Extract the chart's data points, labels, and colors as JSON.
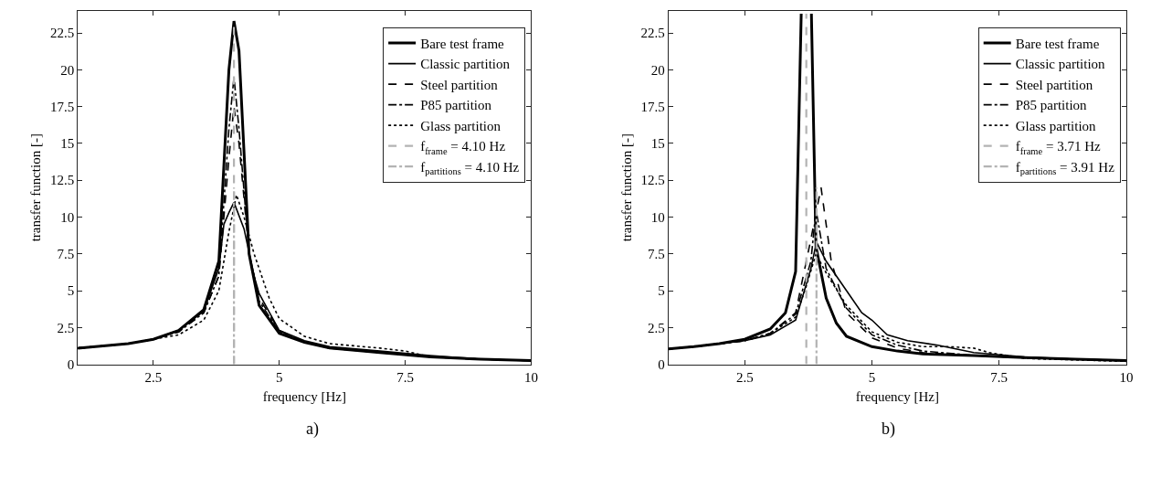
{
  "chart_data": [
    {
      "type": "line",
      "xlabel": "frequency [Hz]",
      "ylabel": "transfer function [-]",
      "xlim": [
        1,
        10
      ],
      "xticks": [
        2.5,
        5,
        7.5,
        10
      ],
      "ylim": [
        0,
        24
      ],
      "yticks": [
        0,
        2.5,
        5,
        7.5,
        10,
        12.5,
        15,
        17.5,
        20,
        22.5
      ],
      "legend": "top right",
      "marker": "none",
      "annotations": [
        "a)"
      ],
      "series": [
        {
          "name": "Bare test frame",
          "color": "#000000",
          "line_style": "solid",
          "x": [
            1,
            1.5,
            2,
            2.5,
            3,
            3.5,
            3.8,
            4.0,
            4.1,
            4.2,
            4.4,
            4.6,
            5,
            5.5,
            6,
            7,
            8,
            9,
            10
          ],
          "values": [
            1.1,
            1.25,
            1.4,
            1.7,
            2.3,
            3.7,
            7,
            20,
            23.3,
            21.3,
            7.5,
            4,
            2.1,
            1.5,
            1.1,
            0.8,
            0.5,
            0.35,
            0.25
          ]
        },
        {
          "name": "Classic partition",
          "color": "#000000",
          "line_style": "solid",
          "x": [
            1,
            1.5,
            2,
            2.5,
            3,
            3.5,
            3.8,
            3.9,
            4.0,
            4.1,
            4.3,
            4.5,
            4.6,
            5,
            5.5,
            6,
            7,
            8,
            9,
            10
          ],
          "values": [
            1.1,
            1.25,
            1.4,
            1.7,
            2.3,
            3.6,
            6.5,
            9.5,
            10.3,
            11,
            9.2,
            6,
            4.8,
            2.3,
            1.6,
            1.2,
            0.9,
            0.6,
            0.35,
            0.25
          ]
        },
        {
          "name": "Steel partition",
          "color": "#000000",
          "line_style": "dashed",
          "x": [
            1,
            1.5,
            2,
            2.5,
            3,
            3.5,
            3.8,
            4.0,
            4.1,
            4.2,
            4.4,
            4.6,
            5,
            5.5,
            6,
            7,
            8,
            9,
            10
          ],
          "values": [
            1.1,
            1.25,
            1.4,
            1.7,
            2.2,
            3.5,
            6,
            14,
            17.5,
            15,
            7.5,
            4.5,
            2.3,
            1.5,
            1.1,
            0.8,
            0.5,
            0.35,
            0.25
          ]
        },
        {
          "name": "P85 partition",
          "color": "#000000",
          "line_style": "dashdot",
          "x": [
            1,
            1.5,
            2,
            2.5,
            3,
            3.5,
            3.8,
            4.0,
            4.1,
            4.2,
            4.4,
            4.6,
            5,
            5.5,
            6,
            7,
            8,
            9,
            10
          ],
          "values": [
            1.1,
            1.25,
            1.4,
            1.7,
            2.2,
            3.5,
            6,
            16,
            19.5,
            16,
            7.5,
            4.3,
            2.2,
            1.5,
            1.1,
            0.8,
            0.5,
            0.35,
            0.25
          ]
        },
        {
          "name": "Glass partition",
          "color": "#000000",
          "line_style": "dotted",
          "x": [
            1,
            1.5,
            2,
            2.5,
            3,
            3.5,
            3.8,
            4.0,
            4.15,
            4.3,
            4.5,
            4.8,
            5,
            5.5,
            6,
            7,
            7.5,
            8,
            9,
            10
          ],
          "values": [
            1.1,
            1.25,
            1.4,
            1.7,
            2.0,
            3.0,
            5,
            9,
            11.5,
            10,
            7.5,
            4.5,
            3.1,
            1.9,
            1.4,
            1.1,
            0.9,
            0.5,
            0.35,
            0.25
          ]
        },
        {
          "name": "f$_{frame}$ = 4.10 Hz",
          "color": "#b3b3b3",
          "line_style": "dashed",
          "x": [
            4.1,
            4.1
          ],
          "values": [
            0,
            23
          ]
        },
        {
          "name": "f$_{partitions}$ = 4.10 Hz",
          "color": "#b3b3b3",
          "line_style": "dashdot",
          "x": [
            4.1,
            4.1
          ],
          "values": [
            0,
            12
          ]
        }
      ]
    },
    {
      "type": "line",
      "xlabel": "frequency [Hz]",
      "ylabel": "transfer function [-]",
      "xlim": [
        1,
        10
      ],
      "xticks": [
        2.5,
        5,
        7.5,
        10
      ],
      "ylim": [
        0,
        24
      ],
      "yticks": [
        0,
        2.5,
        5,
        7.5,
        10,
        12.5,
        15,
        17.5,
        20,
        22.5
      ],
      "legend": "top right",
      "marker": "none",
      "annotations": [
        "b)"
      ],
      "series": [
        {
          "name": "Bare test frame",
          "color": "#000000",
          "line_style": "solid",
          "x": [
            1,
            1.5,
            2,
            2.5,
            3,
            3.3,
            3.5,
            3.61,
            3.71,
            3.81,
            3.9,
            4.1,
            4.3,
            4.5,
            5,
            5.5,
            6,
            7,
            8,
            9,
            10
          ],
          "values": [
            1.05,
            1.2,
            1.4,
            1.7,
            2.4,
            3.5,
            6.3,
            23.8,
            null,
            23.8,
            8,
            4.5,
            2.8,
            1.9,
            1.2,
            0.9,
            0.7,
            0.6,
            0.45,
            0.35,
            0.25
          ]
        },
        {
          "name": "Classic partition",
          "color": "#000000",
          "line_style": "solid",
          "x": [
            1,
            1.5,
            2,
            2.5,
            3,
            3.5,
            3.8,
            3.91,
            4.1,
            4.5,
            4.8,
            5,
            5.3,
            5.7,
            6.3,
            7,
            8,
            9,
            10
          ],
          "values": [
            1.05,
            1.2,
            1.4,
            1.6,
            2.0,
            3.0,
            6.5,
            8.3,
            7,
            5,
            3.5,
            3.0,
            2.0,
            1.6,
            1.3,
            0.8,
            0.5,
            0.35,
            0.25
          ]
        },
        {
          "name": "Steel partition",
          "color": "#000000",
          "line_style": "dashed",
          "x": [
            1,
            1.5,
            2,
            2.5,
            3,
            3.5,
            3.8,
            4.0,
            4.2,
            4.5,
            5,
            5.5,
            6,
            7,
            8,
            9,
            10
          ],
          "values": [
            1.05,
            1.2,
            1.4,
            1.6,
            2.1,
            3.5,
            8.5,
            12,
            7,
            3.5,
            1.8,
            1.1,
            0.8,
            0.6,
            0.45,
            0.35,
            0.25
          ]
        },
        {
          "name": "P85 partition",
          "color": "#000000",
          "line_style": "dashdot",
          "x": [
            1,
            1.5,
            2,
            2.5,
            3,
            3.5,
            3.8,
            3.9,
            4.1,
            4.5,
            5,
            5.5,
            6,
            7,
            8,
            9,
            10
          ],
          "values": [
            1.05,
            1.2,
            1.4,
            1.6,
            2.1,
            3.4,
            7,
            10.5,
            6.5,
            3.8,
            2.0,
            1.3,
            0.9,
            0.6,
            0.45,
            0.35,
            0.25
          ]
        },
        {
          "name": "Glass partition",
          "color": "#000000",
          "line_style": "dotted",
          "x": [
            1,
            1.5,
            2,
            2.5,
            3,
            3.5,
            3.7,
            3.9,
            4.1,
            4.5,
            5,
            5.5,
            6,
            6.5,
            7,
            7.3,
            8,
            9,
            10
          ],
          "values": [
            1.05,
            1.2,
            1.4,
            1.6,
            2.1,
            3.2,
            5.2,
            7.5,
            6.2,
            4,
            2.2,
            1.5,
            1.2,
            1.2,
            1.1,
            0.8,
            0.4,
            0.3,
            0.2
          ]
        },
        {
          "name": "f$_{frame}$ = 3.71 Hz",
          "color": "#b3b3b3",
          "line_style": "dashed",
          "x": [
            3.71,
            3.71
          ],
          "values": [
            0,
            23.8
          ]
        },
        {
          "name": "f$_{partitions}$ = 3.91 Hz",
          "color": "#b3b3b3",
          "line_style": "dashdot",
          "x": [
            3.91,
            3.91
          ],
          "values": [
            0,
            12
          ]
        }
      ]
    }
  ]
}
